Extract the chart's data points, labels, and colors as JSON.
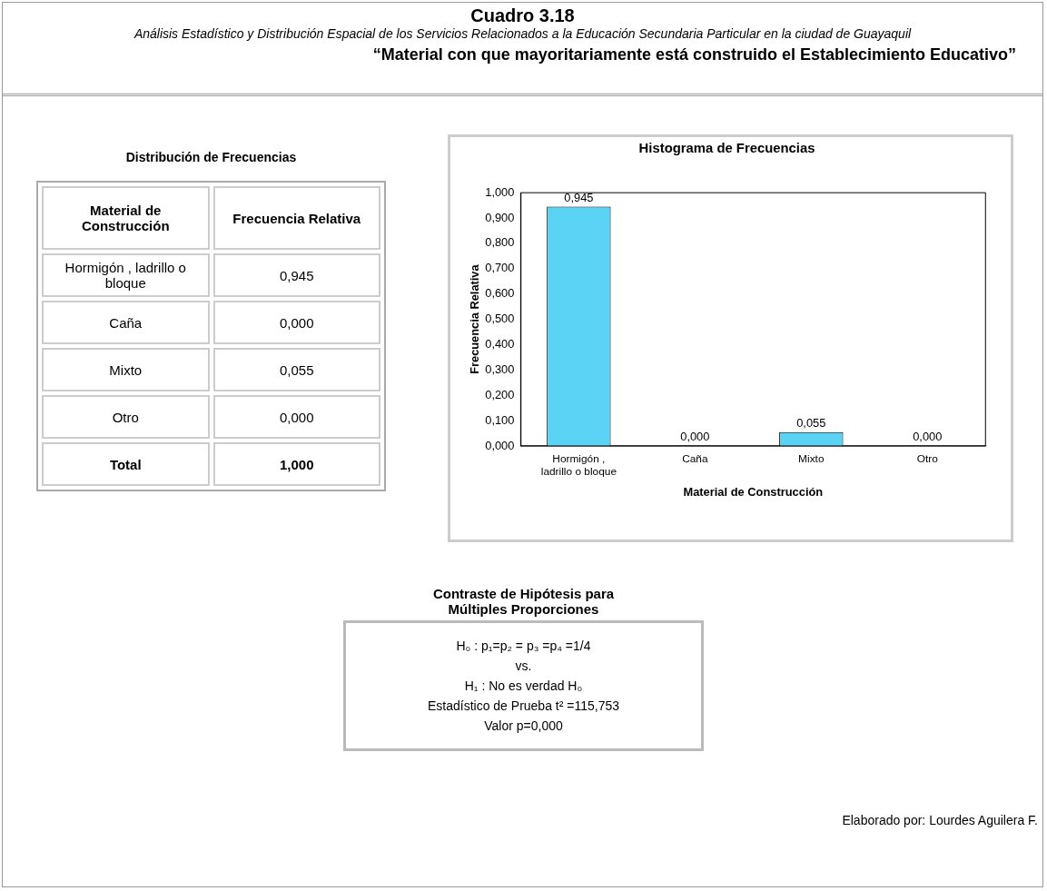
{
  "chart_data": [
    {
      "type": "other",
      "title": "Cuadro 3.18",
      "subtitle": "Análisis Estadístico y Distribución Espacial de los  Servicios Relacionados a la Educación Secundaria Particular en la ciudad de Guayaquil",
      "annotations": [
        "“Material con que mayoritariamente está  construido el Establecimiento Educativo”",
        "Elaborado por: Lourdes Aguilera F."
      ]
    },
    {
      "type": "other",
      "title": "Distribución  de Frecuencias",
      "xlabel": "Material de Construcción",
      "ylabel": "Frecuencia Relativa",
      "categories": [
        "Hormigón , ladrillo o bloque",
        "Caña",
        "Mixto",
        "Otro"
      ],
      "value_labels": [
        "0,945",
        "0,000",
        "0,055",
        "0,000"
      ],
      "annotations": [
        "Total",
        "1,000"
      ]
    },
    {
      "type": "bar",
      "title": "Histograma de Frecuencias",
      "xlabel": "Material de Construcción",
      "ylabel": "Frecuencia Relativa",
      "categories": [
        "Hormigón , ladrillo o bloque",
        "Caña",
        "Mixto",
        "Otro"
      ],
      "values": [
        0.945,
        0.0,
        0.055,
        0.0
      ],
      "value_labels": [
        "0,945",
        "0,000",
        "0,055",
        "0,000"
      ],
      "color": "#5bd3f5",
      "ylim": [
        0,
        1
      ],
      "yticks": [
        {
          "value": 0,
          "label": "0,000"
        },
        {
          "value": 0.1,
          "label": "0,100"
        },
        {
          "value": 0.2,
          "label": "0,200"
        },
        {
          "value": 0.3,
          "label": "0,300"
        },
        {
          "value": 0.4,
          "label": "0,400"
        },
        {
          "value": 0.5,
          "label": "0,500"
        },
        {
          "value": 0.6,
          "label": "0,600"
        },
        {
          "value": 0.7,
          "label": "0,700"
        },
        {
          "value": 0.8,
          "label": "0,800"
        },
        {
          "value": 0.9,
          "label": "0,900"
        },
        {
          "value": 1,
          "label": "1,000"
        }
      ],
      "grid": false,
      "legend": false
    },
    {
      "type": "other",
      "title": "Contraste de Hipótesis para Múltiples Proporciones",
      "annotations": [
        "H₀ : p₁=p₂ = p₃ =p₄ =1/4",
        "vs.",
        "H₁ : No es verdad H₀",
        "Estadístico de Prueba t² =115,753",
        "Valor p=0,000"
      ]
    }
  ]
}
